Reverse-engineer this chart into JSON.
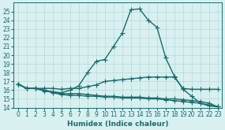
{
  "xlabel": "Humidex (Indice chaleur)",
  "x_values": [
    0,
    1,
    2,
    3,
    4,
    5,
    6,
    7,
    8,
    9,
    10,
    11,
    12,
    13,
    14,
    15,
    16,
    17,
    18,
    19,
    20,
    21,
    22,
    23
  ],
  "series": [
    [
      16.7,
      16.2,
      16.2,
      15.9,
      15.8,
      15.7,
      16.0,
      16.5,
      18.0,
      19.3,
      19.5,
      21.0,
      22.5,
      25.2,
      25.3,
      24.0,
      23.2,
      19.7,
      17.6,
      16.1,
      15.3,
      14.5,
      14.2,
      14.1
    ],
    [
      16.7,
      16.2,
      16.2,
      16.2,
      16.2,
      16.1,
      16.2,
      16.2,
      16.4,
      16.6,
      17.0,
      17.1,
      17.2,
      17.3,
      17.4,
      17.5,
      17.5,
      17.5,
      17.5,
      16.2,
      16.1,
      16.1,
      16.1,
      16.1
    ],
    [
      16.7,
      16.2,
      16.2,
      16.0,
      15.8,
      15.6,
      15.6,
      15.6,
      15.5,
      15.4,
      15.3,
      15.3,
      15.2,
      15.2,
      15.2,
      15.1,
      15.1,
      15.0,
      15.0,
      14.9,
      14.8,
      14.7,
      14.5,
      14.1
    ],
    [
      16.7,
      16.2,
      16.2,
      16.0,
      15.7,
      15.5,
      15.4,
      15.4,
      15.3,
      15.3,
      15.2,
      15.2,
      15.1,
      15.1,
      15.1,
      15.0,
      15.0,
      14.9,
      14.8,
      14.7,
      14.6,
      14.5,
      14.3,
      14.1
    ]
  ],
  "line_color": "#1a6b6b",
  "bg_color": "#d8f0f0",
  "grid_color": "#b8d8d8",
  "ylim": [
    14,
    26
  ],
  "yticks": [
    14,
    15,
    16,
    17,
    18,
    19,
    20,
    21,
    22,
    23,
    24,
    25
  ],
  "xlim": [
    -0.5,
    23.5
  ],
  "marker": "+",
  "markersize": 4,
  "linewidth": 1.0,
  "tick_fontsize": 5.5,
  "label_fontsize": 6.5
}
